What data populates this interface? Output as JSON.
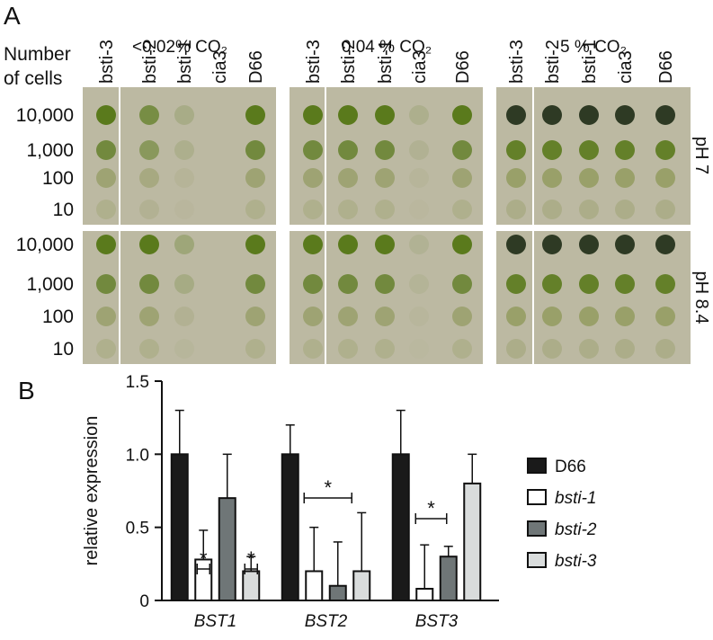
{
  "panel_a": {
    "label": "A",
    "conditions": [
      "<0.02% CO₂",
      "0.04 % CO₂",
      "5 % CO₂"
    ],
    "strains": [
      "bsti-3",
      "bsti-2",
      "bsti-1",
      "cia3",
      "D66"
    ],
    "row_header": [
      "Number",
      "of cells"
    ],
    "cell_counts": [
      "10,000",
      "1,000",
      "100",
      "10"
    ],
    "ph_labels": [
      "pH 7",
      "pH 8.4"
    ]
  },
  "chart_data": {
    "type": "bar",
    "label": "B",
    "ylabel": "relative expression",
    "categories": [
      "BST1",
      "BST2",
      "BST3"
    ],
    "series": [
      {
        "name": "D66",
        "color": "#1a1a1a",
        "values": [
          1,
          1,
          1
        ],
        "errors": [
          0.3,
          0.2,
          0.3
        ]
      },
      {
        "name": "bsti-1",
        "color": "#ffffff",
        "values": [
          0.28,
          0.2,
          0.08
        ],
        "errors": [
          0.2,
          0.3,
          0.3
        ]
      },
      {
        "name": "bsti-2",
        "color": "#6f7677",
        "values": [
          0.7,
          0.1,
          0.3
        ],
        "errors": [
          0.3,
          0.3,
          0.07
        ]
      },
      {
        "name": "bsti-3",
        "color": "#d9dcdc",
        "values": [
          0.2,
          0.2,
          0.8
        ],
        "errors": [
          0.1,
          0.4,
          0.2
        ]
      }
    ],
    "ylim": [
      0,
      1.5
    ],
    "yticks": [
      0,
      0.5,
      {
        "value": 1,
        "label": "1.0"
      },
      1.5
    ],
    "annotations": [
      "*",
      "*",
      "*",
      "*"
    ],
    "legend": "right"
  }
}
